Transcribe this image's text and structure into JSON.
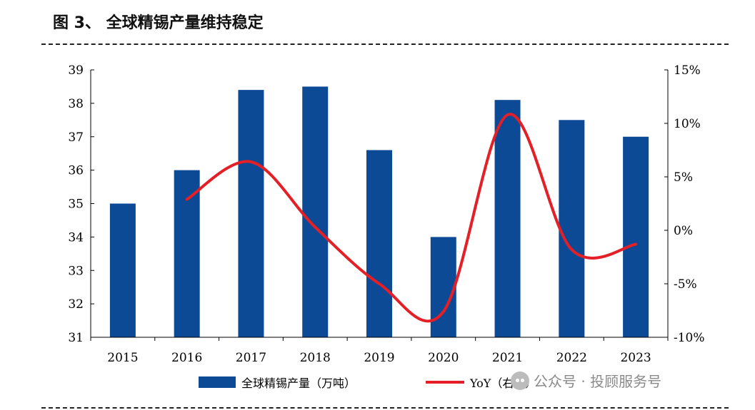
{
  "figure_title": "图 3、 全球精锡产量维持稳定",
  "watermark": "公众号 · 投顾服务号",
  "colors": {
    "bar": "#0d4a96",
    "line": "#e41f26",
    "axis": "#000000"
  },
  "chart_data": {
    "type": "bar",
    "categories": [
      "2015",
      "2016",
      "2017",
      "2018",
      "2019",
      "2020",
      "2021",
      "2022",
      "2023"
    ],
    "series": [
      {
        "name": "全球精锡产量（万吨）",
        "axis": "left",
        "kind": "bar",
        "values": [
          35.0,
          36.0,
          38.4,
          38.5,
          36.6,
          34.0,
          38.1,
          37.5,
          37.0
        ]
      },
      {
        "name": "YoY（右轴）",
        "axis": "right",
        "kind": "line",
        "values": [
          null,
          2.9,
          6.4,
          0.3,
          -5.0,
          -7.6,
          10.8,
          -1.8,
          -1.3
        ]
      }
    ],
    "y_left": {
      "min": 31,
      "max": 39,
      "ticks": [
        "31",
        "32",
        "33",
        "34",
        "35",
        "36",
        "37",
        "38",
        "39"
      ]
    },
    "y_right": {
      "min": -10,
      "max": 15,
      "ticks": [
        "-10%",
        "-5%",
        "0%",
        "5%",
        "10%",
        "15%"
      ]
    },
    "legend": {
      "placement": "bottom",
      "items": [
        {
          "label": "全球精锡产量（万吨）",
          "kind": "bar"
        },
        {
          "label": "YoY（右轴）",
          "kind": "line"
        }
      ]
    }
  }
}
